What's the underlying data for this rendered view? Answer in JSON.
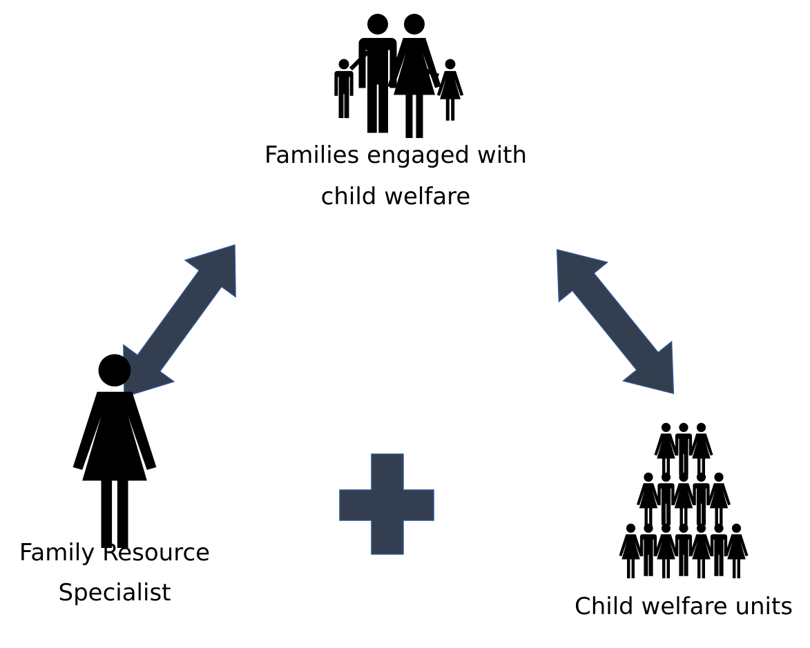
{
  "nodes": [
    {
      "label_lines": [
        "Families engaged with",
        "child welfare"
      ]
    },
    {
      "label_lines": [
        "Family Resource",
        "Specialist"
      ]
    },
    {
      "label_lines": [
        "Child welfare units"
      ]
    }
  ]
}
